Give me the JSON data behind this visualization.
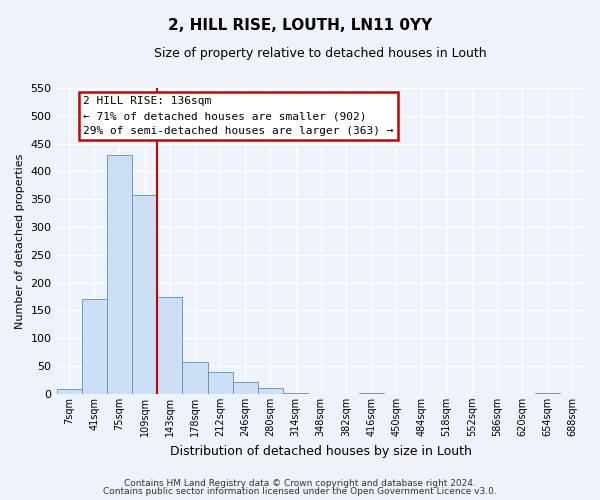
{
  "title": "2, HILL RISE, LOUTH, LN11 0YY",
  "subtitle": "Size of property relative to detached houses in Louth",
  "xlabel": "Distribution of detached houses by size in Louth",
  "ylabel": "Number of detached properties",
  "bar_labels": [
    "7sqm",
    "41sqm",
    "75sqm",
    "109sqm",
    "143sqm",
    "178sqm",
    "212sqm",
    "246sqm",
    "280sqm",
    "314sqm",
    "348sqm",
    "382sqm",
    "416sqm",
    "450sqm",
    "484sqm",
    "518sqm",
    "552sqm",
    "586sqm",
    "620sqm",
    "654sqm",
    "688sqm"
  ],
  "bar_values": [
    8,
    170,
    430,
    357,
    175,
    57,
    40,
    21,
    10,
    2,
    0,
    0,
    1,
    0,
    0,
    0,
    0,
    0,
    0,
    1,
    0
  ],
  "bar_color": "#ccdff5",
  "bar_edge_color": "#5a8fc0",
  "vline_color": "#cc0000",
  "vline_x_idx": 3,
  "annotation_title": "2 HILL RISE: 136sqm",
  "annotation_line1": "← 71% of detached houses are smaller (902)",
  "annotation_line2": "29% of semi-detached houses are larger (363) →",
  "ylim": [
    0,
    550
  ],
  "yticks": [
    0,
    50,
    100,
    150,
    200,
    250,
    300,
    350,
    400,
    450,
    500,
    550
  ],
  "footer1": "Contains HM Land Registry data © Crown copyright and database right 2024.",
  "footer2": "Contains public sector information licensed under the Open Government Licence v3.0.",
  "bg_color": "#eef2f9",
  "grid_color": "#ffffff",
  "annotation_box_color": "#ffffff",
  "annotation_box_edge": "#cc0000",
  "title_fontsize": 11,
  "subtitle_fontsize": 9
}
